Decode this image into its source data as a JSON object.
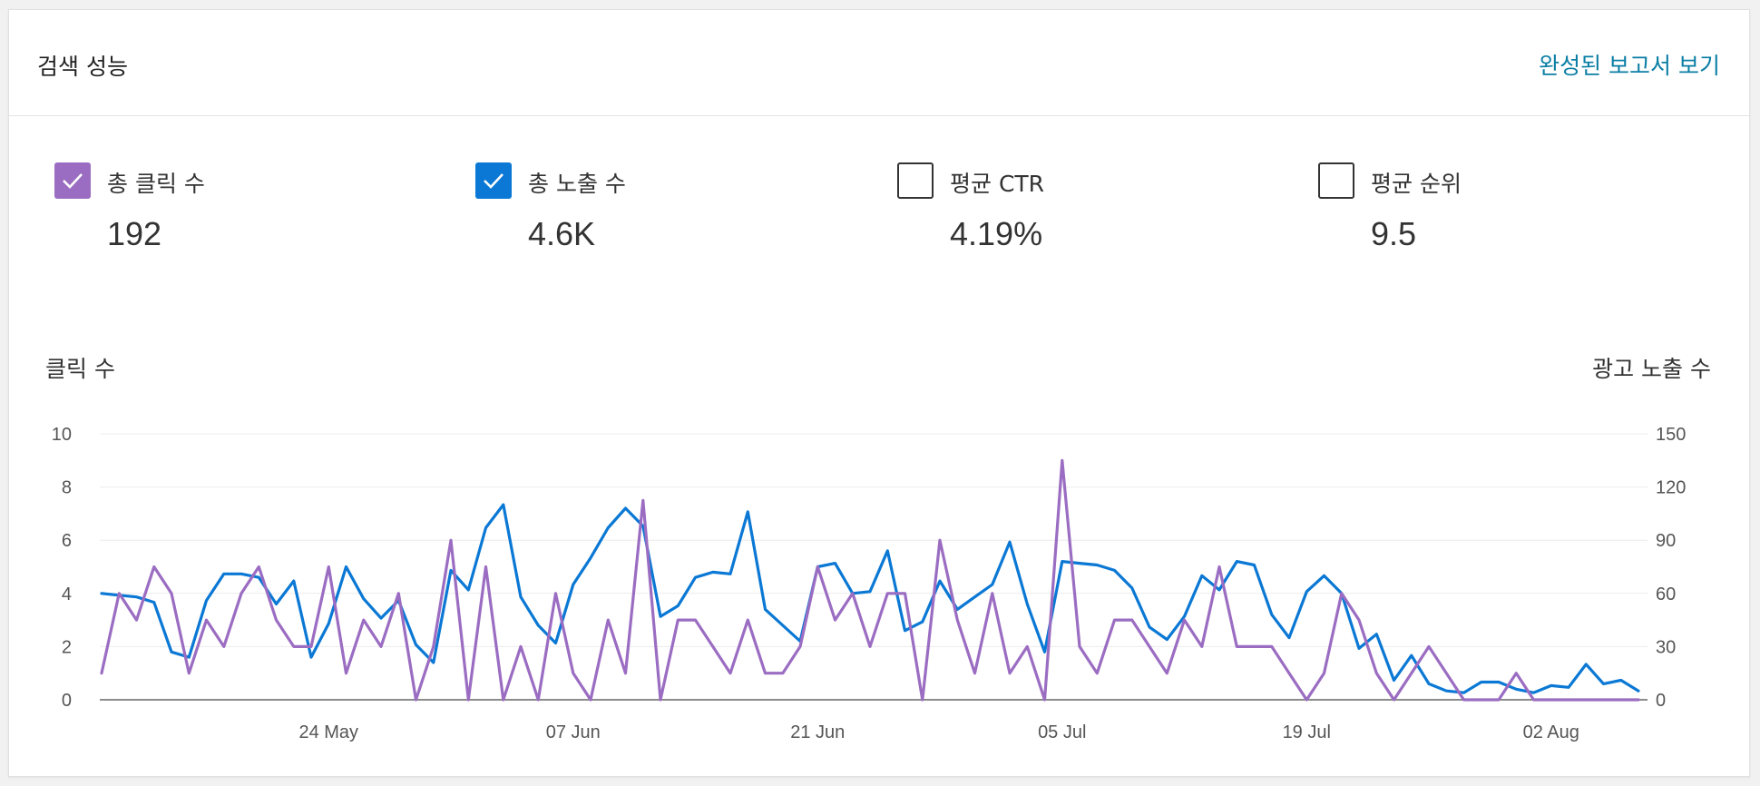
{
  "header": {
    "title": "검색 성능",
    "report_link": "완성된 보고서 보기"
  },
  "metrics": [
    {
      "label": "총 클릭 수",
      "value": "192",
      "checked": true,
      "color": "#9b6dc2"
    },
    {
      "label": "총 노출 수",
      "value": "4.6K",
      "checked": true,
      "color": "#0a78d4"
    },
    {
      "label": "평균 CTR",
      "value": "4.19%",
      "checked": false,
      "color": "#333333"
    },
    {
      "label": "평균 순위",
      "value": "9.5",
      "checked": false,
      "color": "#333333"
    }
  ],
  "chart_data": {
    "type": "line",
    "left_axis_title": "클릭 수",
    "right_axis_title": "광고 노출 수",
    "left_ticks": [
      "0",
      "2",
      "4",
      "6",
      "8",
      "10"
    ],
    "right_ticks": [
      "0",
      "30",
      "60",
      "90",
      "120",
      "150"
    ],
    "ylim_left": [
      0,
      10
    ],
    "ylim_right": [
      0,
      150
    ],
    "x_start": "2024-05-11",
    "x_tick_labels": [
      "24 May",
      "07 Jun",
      "21 Jun",
      "05 Jul",
      "19 Jul",
      "02 Aug"
    ],
    "grid": true,
    "series": [
      {
        "name": "총 클릭 수",
        "axis": "left",
        "color": "#9b6dc2",
        "values": [
          1,
          4,
          3,
          5,
          4,
          1,
          3,
          2,
          4,
          5,
          3,
          2,
          2,
          5,
          1,
          3,
          2,
          4,
          0,
          2,
          6,
          0,
          5,
          0,
          2,
          0,
          4,
          1,
          0,
          3,
          1,
          7.5,
          0,
          3,
          3,
          2,
          1,
          3,
          1,
          1,
          2,
          5,
          3,
          4,
          2,
          4,
          4,
          0,
          6,
          3,
          1,
          4,
          1,
          2,
          0,
          9,
          2,
          1,
          3,
          3,
          2,
          1,
          3,
          2,
          5,
          2,
          2,
          2,
          1,
          0,
          1,
          4,
          3,
          1,
          0,
          1,
          2,
          1,
          0,
          0,
          0,
          1,
          0,
          0,
          0,
          0,
          0,
          0,
          0
        ]
      },
      {
        "name": "총 노출 수",
        "axis": "right",
        "color": "#0a78d4",
        "values": [
          60,
          59,
          58,
          55,
          27,
          24,
          56,
          71,
          71,
          69,
          54,
          67,
          24,
          43,
          75,
          57,
          46,
          56,
          31,
          21,
          73,
          62,
          97,
          110,
          58,
          42,
          32,
          65,
          80,
          97,
          108,
          98,
          47,
          53,
          69,
          72,
          71,
          106,
          51,
          42,
          33,
          75,
          77,
          60,
          61,
          84,
          39,
          44,
          67,
          51,
          58,
          65,
          89,
          54,
          27,
          78,
          77,
          76,
          73,
          63,
          41,
          34,
          47,
          70,
          62,
          78,
          76,
          48,
          35,
          61,
          70,
          60,
          29,
          37,
          11,
          25,
          9,
          5,
          4,
          10,
          10,
          6,
          4,
          8,
          7,
          20,
          9,
          11,
          5
        ]
      }
    ]
  }
}
